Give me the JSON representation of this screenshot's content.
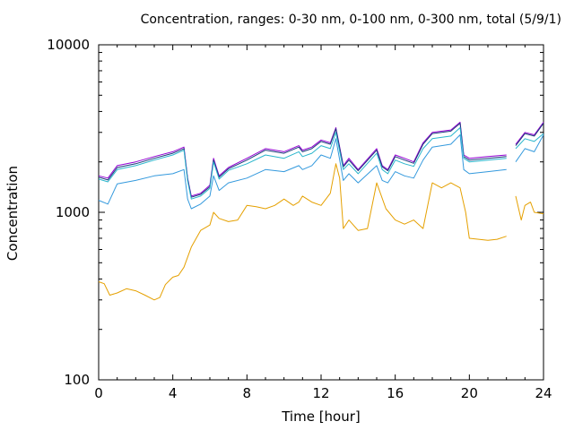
{
  "chart_data": {
    "type": "line",
    "title": "Concentration, ranges: 0-30 nm, 0-100 nm, 0-300 nm, total (5/9/1)",
    "xlabel": "Time [hour]",
    "ylabel": "Concentration",
    "xlim": [
      0,
      24
    ],
    "ylim": [
      100,
      10000
    ],
    "yscale": "log",
    "xticks": [
      "0",
      "4",
      "8",
      "12",
      "16",
      "20",
      "24"
    ],
    "yticks": [
      "100",
      "1000",
      "10000"
    ],
    "grid": false,
    "colors": {
      "total": "#9400d3",
      "0-300 nm": "#1a3a7a",
      "0-100 nm": "#29b6cc",
      "0-30 nm": "#3399dd",
      "extra": "#e5a000"
    },
    "series": [
      {
        "key": "total",
        "x": [
          0,
          0.5,
          1,
          2,
          3,
          4,
          4.6,
          4.8,
          5,
          5.5,
          6,
          6.2,
          6.5,
          7,
          8,
          9,
          10,
          10.8,
          11,
          11.5,
          12,
          12.5,
          12.8,
          13.2,
          13.5,
          14,
          15,
          15.3,
          15.6,
          16,
          16.5,
          17,
          17.5,
          18,
          19,
          19.5,
          19.7,
          20,
          21,
          22,
          22.1,
          22.5,
          23,
          23.5,
          24
        ],
        "y": [
          1650,
          1600,
          1900,
          2000,
          2150,
          2300,
          2450,
          1600,
          1250,
          1300,
          1450,
          2100,
          1650,
          1850,
          2100,
          2400,
          2300,
          2500,
          2350,
          2450,
          2700,
          2600,
          3200,
          1900,
          2100,
          1800,
          2400,
          1900,
          1800,
          2200,
          2100,
          2000,
          2600,
          3000,
          3100,
          3450,
          2200,
          2100,
          2150,
          2200,
          null,
          2550,
          3000,
          2900,
          3450
        ]
      },
      {
        "key": "0-300 nm",
        "x": [
          0,
          0.5,
          1,
          2,
          3,
          4,
          4.6,
          4.8,
          5,
          5.5,
          6,
          6.2,
          6.5,
          7,
          8,
          9,
          10,
          10.8,
          11,
          11.5,
          12,
          12.5,
          12.8,
          13.2,
          13.5,
          14,
          15,
          15.3,
          15.6,
          16,
          16.5,
          17,
          17.5,
          18,
          19,
          19.5,
          19.7,
          20,
          21,
          22,
          22.1,
          22.5,
          23,
          23.5,
          24
        ],
        "y": [
          1620,
          1560,
          1850,
          1950,
          2100,
          2250,
          2400,
          1580,
          1230,
          1280,
          1420,
          2050,
          1620,
          1820,
          2050,
          2350,
          2250,
          2450,
          2300,
          2400,
          2650,
          2550,
          3150,
          1870,
          2050,
          1770,
          2350,
          1870,
          1770,
          2150,
          2050,
          1960,
          2550,
          2950,
          3050,
          3400,
          2150,
          2050,
          2100,
          2150,
          null,
          2500,
          2950,
          2850,
          3400
        ]
      },
      {
        "key": "0-100 nm",
        "x": [
          0,
          0.5,
          1,
          2,
          3,
          4,
          4.6,
          4.8,
          5,
          5.5,
          6,
          6.2,
          6.5,
          7,
          8,
          9,
          10,
          10.8,
          11,
          11.5,
          12,
          12.5,
          12.8,
          13.2,
          13.5,
          14,
          15,
          15.3,
          15.6,
          16,
          16.5,
          17,
          17.5,
          18,
          19,
          19.5,
          19.7,
          20,
          21,
          22,
          22.1,
          22.5,
          23,
          23.5,
          24
        ],
        "y": [
          1580,
          1520,
          1800,
          1900,
          2050,
          2200,
          2350,
          1540,
          1200,
          1250,
          1390,
          2000,
          1580,
          1780,
          1950,
          2200,
          2100,
          2300,
          2150,
          2250,
          2500,
          2400,
          3000,
          1800,
          1950,
          1700,
          2250,
          1800,
          1700,
          2050,
          1950,
          1880,
          2400,
          2750,
          2850,
          3200,
          2100,
          2000,
          2050,
          2100,
          null,
          2400,
          2750,
          2650,
          2950
        ]
      },
      {
        "key": "0-30 nm",
        "x": [
          0,
          0.5,
          1,
          2,
          3,
          4,
          4.6,
          4.8,
          5,
          5.5,
          6,
          6.2,
          6.5,
          7,
          8,
          9,
          10,
          10.8,
          11,
          11.5,
          12,
          12.5,
          12.8,
          13.2,
          13.5,
          14,
          15,
          15.3,
          15.6,
          16,
          16.5,
          17,
          17.5,
          18,
          19,
          19.5,
          19.7,
          20,
          21,
          22,
          22.1,
          22.5,
          23,
          23.5,
          24
        ],
        "y": [
          1180,
          1120,
          1480,
          1550,
          1650,
          1700,
          1800,
          1200,
          1050,
          1120,
          1250,
          1650,
          1350,
          1500,
          1600,
          1800,
          1750,
          1900,
          1800,
          1900,
          2200,
          2100,
          2750,
          1550,
          1700,
          1500,
          1900,
          1550,
          1500,
          1750,
          1650,
          1600,
          2050,
          2450,
          2550,
          2900,
          1800,
          1700,
          1750,
          1800,
          null,
          2000,
          2400,
          2300,
          2900
        ]
      },
      {
        "key": "extra",
        "x": [
          0,
          0.3,
          0.6,
          1,
          1.5,
          2,
          2.5,
          3,
          3.3,
          3.6,
          3.9,
          4,
          4.3,
          4.6,
          5,
          5.5,
          6,
          6.2,
          6.5,
          7,
          7.5,
          8,
          8.5,
          9,
          9.5,
          10,
          10.5,
          10.8,
          11,
          11.5,
          12,
          12.5,
          12.8,
          13,
          13.2,
          13.5,
          14,
          14.5,
          15,
          15.5,
          16,
          16.5,
          17,
          17.5,
          18,
          18.5,
          19,
          19.5,
          19.8,
          20,
          21,
          21.5,
          22,
          22.1,
          22.5,
          22.8,
          23,
          23.3,
          23.5,
          24
        ],
        "y": [
          385,
          375,
          320,
          330,
          350,
          340,
          320,
          300,
          310,
          370,
          400,
          410,
          420,
          470,
          620,
          780,
          840,
          1000,
          920,
          880,
          900,
          1100,
          1080,
          1050,
          1100,
          1200,
          1100,
          1150,
          1250,
          1150,
          1100,
          1300,
          1950,
          1600,
          800,
          900,
          780,
          800,
          1500,
          1050,
          900,
          850,
          900,
          800,
          1500,
          1400,
          1500,
          1400,
          1000,
          700,
          680,
          690,
          720,
          null,
          1250,
          900,
          1100,
          1150,
          1000,
          980
        ]
      }
    ]
  }
}
